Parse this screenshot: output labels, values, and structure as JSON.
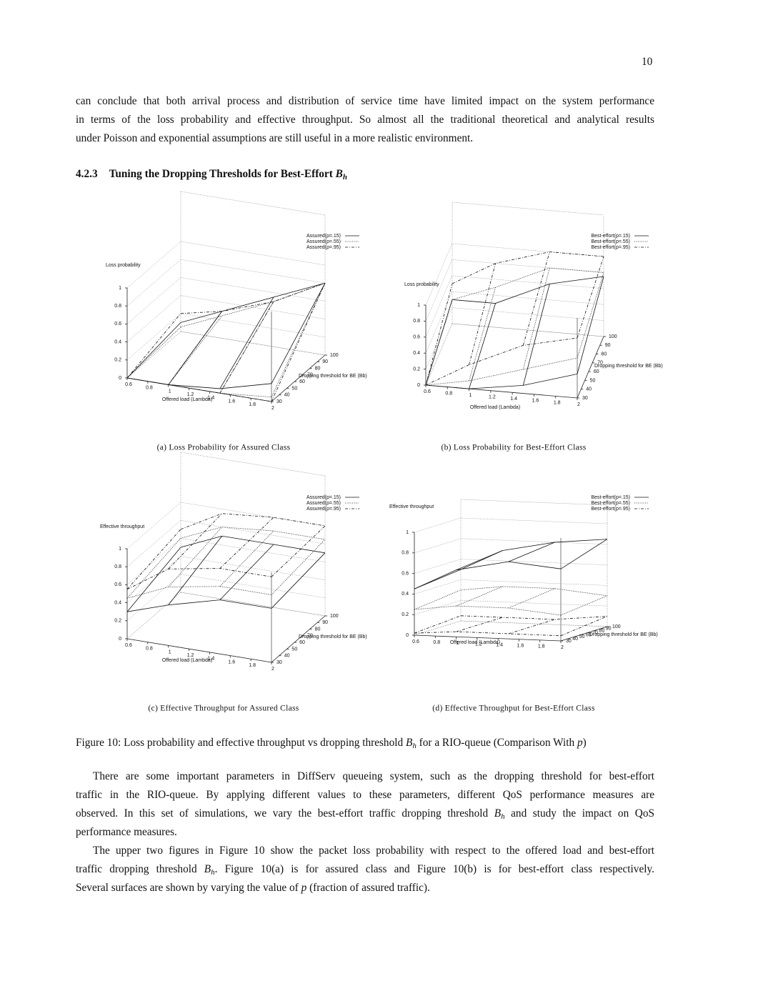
{
  "page_number": "10",
  "intro": {
    "lines": [
      [
        "can conclude that both arrival process and distribution of service time have limited impact on the system performance"
      ],
      [
        "in terms of the loss probability and effective throughput. So almost all the traditional theoretical and analytical results"
      ],
      [
        "under Poisson and exponential assumptions are still useful in a more realistic environment."
      ]
    ]
  },
  "section": {
    "number": "4.2.3",
    "title": [
      "Tuning the Dropping Thresholds for Best-Effort ",
      {
        "math": "B",
        "sub": "h"
      }
    ]
  },
  "figure": {
    "panels": [
      {
        "caption": "(a) Loss Probability for Assured Class",
        "zlabel": "Loss probability",
        "xlabel": "Offered load (Lambda)",
        "ylabel": "Dropping threshold for BE (Bb)",
        "xticks": [
          0.6,
          0.8,
          1,
          1.2,
          1.4,
          1.6,
          1.8,
          2
        ],
        "yticks": [
          30,
          40,
          50,
          60,
          70,
          80,
          90,
          100
        ],
        "zticks": [
          0,
          0.2,
          0.4,
          0.6,
          0.8,
          1
        ],
        "grid_x": [
          0.6,
          1,
          1.5,
          2
        ],
        "series": [
          {
            "name": "Assured(p=.15)",
            "style": "solid",
            "rows": [
              {
                "y": 30,
                "values": [
                  0,
                  0,
                  0.05,
                  0.2
                ]
              },
              {
                "y": 100,
                "values": [
                  0.1,
                  0.3,
                  0.55,
                  0.8
                ]
              }
            ]
          },
          {
            "name": "Assured(p=.55)",
            "style": "dotted",
            "rows": [
              {
                "y": 30,
                "values": [
                  0,
                  0,
                  0,
                  0.05
                ]
              },
              {
                "y": 100,
                "values": [
                  0.05,
                  0.25,
                  0.5,
                  0.8
                ]
              }
            ]
          },
          {
            "name": "Assured(p=.95)",
            "style": "dashdot",
            "rows": [
              {
                "y": 30,
                "values": [
                  0,
                  0,
                  0,
                  0
                ]
              },
              {
                "y": 100,
                "values": [
                  0.2,
                  0.3,
                  0.5,
                  0.8
                ]
              }
            ]
          }
        ]
      },
      {
        "caption": "(b) Loss Probability for Best-Effort Class",
        "zlabel": "Loss probability",
        "xlabel": "Offered load (Lambda)",
        "ylabel": "Dropping threshold for BE (Bb)",
        "xticks": [
          0.6,
          0.8,
          1,
          1.2,
          1.4,
          1.6,
          1.8,
          2
        ],
        "yticks": [
          30,
          40,
          50,
          60,
          70,
          80,
          90,
          100
        ],
        "zticks": [
          0,
          0.2,
          0.4,
          0.6,
          0.8,
          1
        ],
        "grid_x": [
          0.6,
          1,
          1.5,
          2
        ],
        "series": [
          {
            "name": "Best-effort(p=.15)",
            "style": "solid",
            "rows": [
              {
                "y": 30,
                "values": [
                  0,
                  0,
                  0.1,
                  0.3
                ]
              },
              {
                "y": 100,
                "values": [
                  0.3,
                  0.3,
                  0.6,
                  0.75
                ]
              }
            ]
          },
          {
            "name": "Best-effort(p=.55)",
            "style": "dotted",
            "rows": [
              {
                "y": 30,
                "values": [
                  0,
                  0.1,
                  0.3,
                  0.5
                ]
              },
              {
                "y": 100,
                "values": [
                  0.3,
                  0.5,
                  0.8,
                  0.8
                ]
              }
            ]
          },
          {
            "name": "Best-effort(p=.95)",
            "style": "dashdot",
            "rows": [
              {
                "y": 30,
                "values": [
                  0,
                  0.3,
                  0.6,
                  0.75
                ]
              },
              {
                "y": 100,
                "values": [
                  0.5,
                  0.8,
                  1,
                  1
                ]
              }
            ]
          }
        ]
      },
      {
        "caption": "(c) Effective Throughput for Assured Class",
        "zlabel": "Effective throughput",
        "xlabel": "Offered load (Lambda)",
        "ylabel": "Dropping threshold for BE (Bb)",
        "xticks": [
          0.6,
          0.8,
          1,
          1.2,
          1.4,
          1.6,
          1.8,
          2
        ],
        "yticks": [
          30,
          40,
          50,
          60,
          70,
          80,
          90,
          100
        ],
        "zticks": [
          0,
          0.2,
          0.4,
          0.6,
          0.8,
          1
        ],
        "grid_x": [
          0.6,
          1,
          1.5,
          2
        ],
        "series": [
          {
            "name": "Assured(p=.15)",
            "style": "solid",
            "rows": [
              {
                "y": 30,
                "values": [
                  0.3,
                  0.45,
                  0.6,
                  0.6
                ]
              },
              {
                "y": 100,
                "values": [
                  0.5,
                  0.7,
                  0.7,
                  0.7
                ]
              }
            ]
          },
          {
            "name": "Assured(p=.55)",
            "style": "dotted",
            "rows": [
              {
                "y": 30,
                "values": [
                  0.45,
                  0.65,
                  0.75,
                  0.75
                ]
              },
              {
                "y": 100,
                "values": [
                  0.6,
                  0.8,
                  0.85,
                  0.85
                ]
              }
            ]
          },
          {
            "name": "Assured(p=.95)",
            "style": "dashdot",
            "rows": [
              {
                "y": 30,
                "values": [
                  0.55,
                  0.85,
                  0.95,
                  0.95
                ]
              },
              {
                "y": 100,
                "values": [
                  0.7,
                  0.95,
                  1,
                  1
                ]
              }
            ]
          }
        ]
      },
      {
        "caption": "(d) Effective Throughput for Best-Effort Class",
        "zlabel": "Effective throughput",
        "xlabel": "Offered load (Lambda)",
        "ylabel": "Dropping threshold for BE (Bb)",
        "xticks": [
          0.6,
          0.8,
          1,
          1.2,
          1.4,
          1.6,
          1.8,
          2
        ],
        "yticks": [
          30,
          40,
          50,
          60,
          70,
          80,
          90,
          100
        ],
        "zticks": [
          0,
          0.2,
          0.4,
          0.6,
          0.8,
          1
        ],
        "grid_x": [
          0.6,
          1,
          1.5,
          2
        ],
        "series": [
          {
            "name": "Best-effort(p=.15)",
            "style": "solid",
            "rows": [
              {
                "y": 30,
                "values": [
                  0.45,
                  0.65,
                  0.75,
                  0.7
                ]
              },
              {
                "y": 100,
                "values": [
                  0.5,
                  0.7,
                  0.8,
                  0.85
                ]
              }
            ]
          },
          {
            "name": "Best-effort(p=.55)",
            "style": "dotted",
            "rows": [
              {
                "y": 30,
                "values": [
                  0.25,
                  0.3,
                  0.3,
                  0.25
                ]
              },
              {
                "y": 100,
                "values": [
                  0.3,
                  0.35,
                  0.35,
                  0.3
                ]
              }
            ]
          },
          {
            "name": "Best-effort(p=.95)",
            "style": "dashdot",
            "rows": [
              {
                "y": 30,
                "values": [
                  0.02,
                  0.05,
                  0.05,
                  0.05
                ]
              },
              {
                "y": 100,
                "values": [
                  0.05,
                  0.05,
                  0.05,
                  0.1
                ]
              }
            ]
          }
        ]
      }
    ],
    "caption": [
      "Figure 10: Loss probability and effective throughput vs dropping threshold ",
      {
        "math": "B",
        "sub": "h"
      },
      " for a RIO-queue (Comparison With ",
      {
        "math": "p"
      },
      ")"
    ]
  },
  "body": [
    {
      "lines": [
        [
          "There are some important parameters in DiffServ queueing system, such as the dropping threshold for best-effort"
        ],
        [
          "traffic in the RIO-queue. By applying different values to these parameters, different QoS performance measures are"
        ],
        [
          "observed. In this set of simulations, we vary the best-effort traffic dropping threshold ",
          {
            "math": "B",
            "sub": "h"
          },
          " and study the impact on QoS"
        ],
        [
          "performance measures."
        ]
      ]
    },
    {
      "lines": [
        [
          "The upper two figures in Figure 10 show the packet loss probability with respect to the offered load and best-effort"
        ],
        [
          "traffic dropping threshold ",
          {
            "math": "B",
            "sub": "h"
          },
          ". Figure 10(a) is for assured class and Figure 10(b) is for best-effort class respectively."
        ],
        [
          "Several surfaces are shown by varying the value of ",
          {
            "math": "p"
          },
          " (fraction of assured traffic)."
        ]
      ]
    }
  ]
}
